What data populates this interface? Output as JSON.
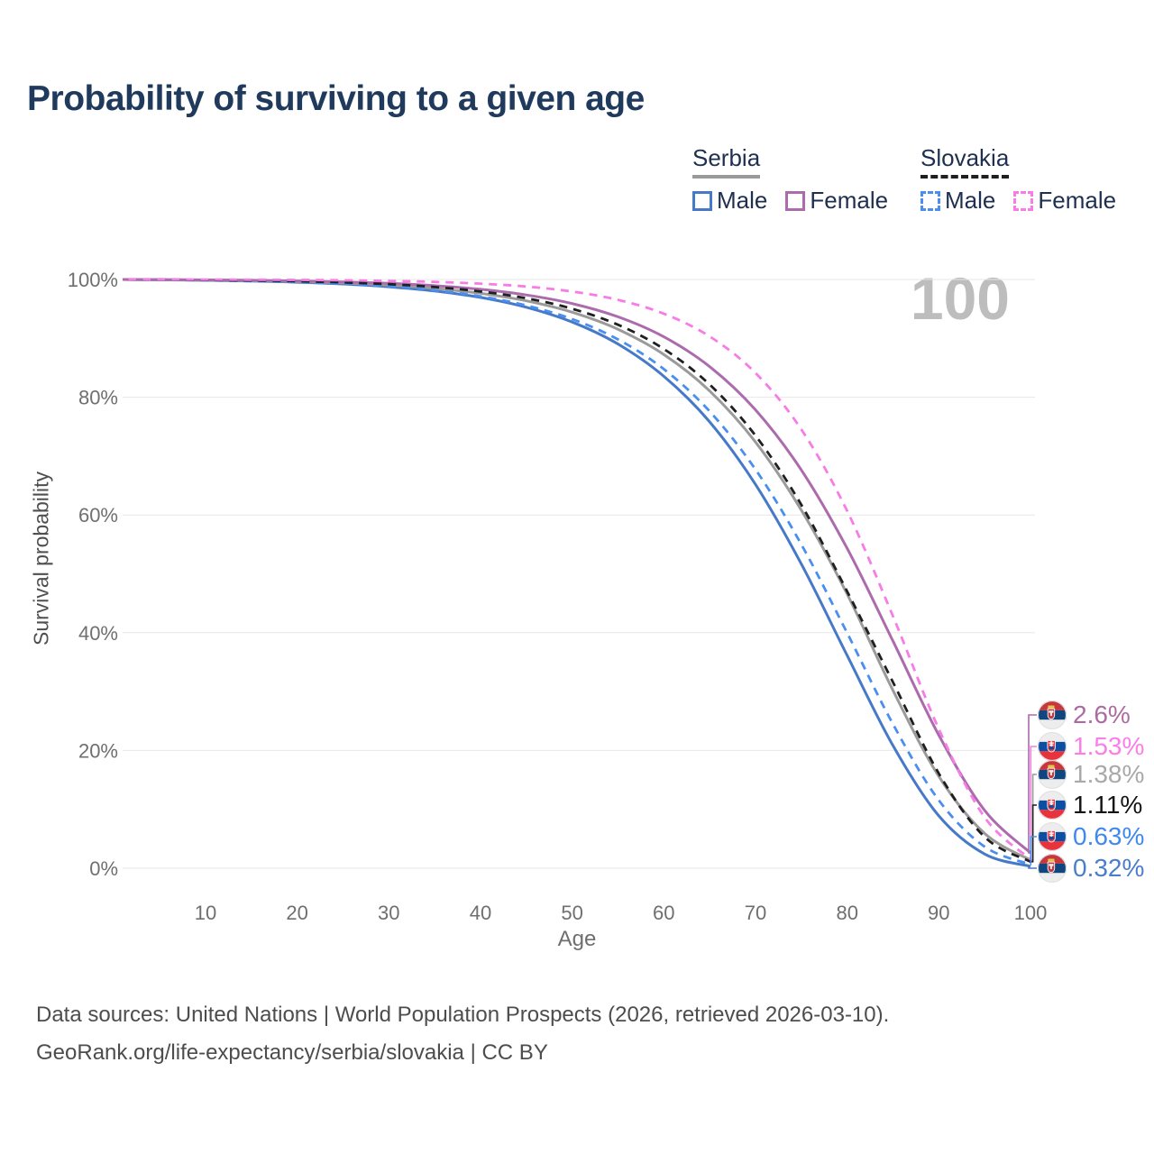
{
  "header": {
    "title": "Probability of surviving to a given age"
  },
  "watermark": "100",
  "legend": {
    "groups": [
      {
        "label": "Serbia",
        "underline": "solid",
        "items": [
          {
            "label": "Male"
          },
          {
            "label": "Female"
          }
        ]
      },
      {
        "label": "Slovakia",
        "underline": "dashed",
        "items": [
          {
            "label": "Male"
          },
          {
            "label": "Female"
          }
        ]
      }
    ]
  },
  "chart_data": {
    "type": "line",
    "title": "Probability of surviving to a given age",
    "xlabel": "Age",
    "ylabel": "Survival probability",
    "xlim": [
      0,
      100
    ],
    "ylim": [
      0,
      100
    ],
    "grid": true,
    "x_ticks": [
      10,
      20,
      30,
      40,
      50,
      60,
      70,
      80,
      90,
      100
    ],
    "y_ticks": [
      0,
      20,
      40,
      60,
      80,
      100
    ],
    "y_tick_suffix": "%",
    "ages": [
      0,
      5,
      10,
      15,
      20,
      25,
      30,
      35,
      40,
      45,
      50,
      55,
      60,
      65,
      70,
      75,
      80,
      85,
      90,
      95,
      100
    ],
    "series": [
      {
        "id": "serbia-male",
        "name": "Male",
        "country": "serbia",
        "style": "solid",
        "color": "#4679C8",
        "label_color": "#4A7DCB",
        "end_label": "0.32%",
        "end_value": 0.32,
        "values": [
          100,
          99.95,
          99.86,
          99.73,
          99.53,
          99.23,
          98.76,
          98.04,
          96.95,
          95.28,
          92.77,
          89.03,
          83.56,
          75.8,
          65.19,
          51.68,
          36.13,
          20.82,
          8.9,
          2.4,
          0.32
        ]
      },
      {
        "id": "serbia-both",
        "name": "Serbia",
        "country": "serbia",
        "style": "solid",
        "color": "#9A9A9A",
        "label_color": "#A9A9A9",
        "end_label": "1.38%",
        "end_value": 1.38,
        "values": [
          100,
          99.96,
          99.89,
          99.79,
          99.64,
          99.4,
          99.05,
          98.49,
          97.65,
          96.37,
          94.44,
          91.54,
          87.26,
          81.06,
          72.39,
          60.83,
          46.55,
          30.2,
          15.6,
          5.9,
          1.38
        ]
      },
      {
        "id": "serbia-female",
        "name": "Female",
        "country": "serbia",
        "style": "solid",
        "color": "#AC6BAC",
        "label_color": "#AC6BA0",
        "end_label": "2.6%",
        "end_value": 2.6,
        "values": [
          100,
          99.97,
          99.93,
          99.86,
          99.76,
          99.59,
          99.34,
          98.94,
          98.33,
          97.37,
          95.91,
          93.66,
          90.26,
          85.19,
          77.85,
          67.64,
          54.32,
          38.57,
          22.61,
          9.82,
          2.6
        ]
      },
      {
        "id": "slovakia-male",
        "name": "Male",
        "country": "slovakia",
        "style": "dashed",
        "color": "#4A8EF0",
        "label_color": "#3F88EC",
        "end_label": "0.63%",
        "end_value": 0.63,
        "values": [
          100,
          99.95,
          99.87,
          99.74,
          99.56,
          99.27,
          98.83,
          98.16,
          97.14,
          95.59,
          93.27,
          89.82,
          84.78,
          77.59,
          67.73,
          55.0,
          39.95,
          24.47,
          11.54,
          3.65,
          0.63
        ]
      },
      {
        "id": "slovakia-both",
        "name": "Slovakia",
        "country": "slovakia",
        "style": "dashed",
        "color": "#1F1F1F",
        "label_color": "#141414",
        "end_label": "1.11%",
        "end_value": 1.11,
        "values": [
          100,
          99.97,
          99.92,
          99.83,
          99.71,
          99.51,
          99.2,
          98.72,
          97.97,
          96.82,
          95.03,
          92.31,
          88.2,
          82.14,
          73.48,
          61.73,
          47.0,
          31.6,
          16.1,
          5.3,
          1.11
        ]
      },
      {
        "id": "slovakia-female",
        "name": "Female",
        "country": "slovakia",
        "style": "dashed",
        "color": "#F87CE6",
        "label_color": "#FB7DE9",
        "end_label": "1.53%",
        "end_value": 1.53,
        "values": [
          100,
          99.99,
          99.98,
          99.96,
          99.92,
          99.86,
          99.76,
          99.59,
          99.29,
          98.8,
          97.95,
          96.54,
          94.19,
          90.32,
          84.12,
          74.53,
          60.68,
          42.8,
          23.65,
          8.63,
          1.53
        ]
      }
    ]
  },
  "footer": {
    "line1": "Data sources: United Nations | World Population Prospects (2026, retrieved 2026-03-10).",
    "line2": "GeoRank.org/life-expectancy/serbia/slovakia | CC BY"
  }
}
